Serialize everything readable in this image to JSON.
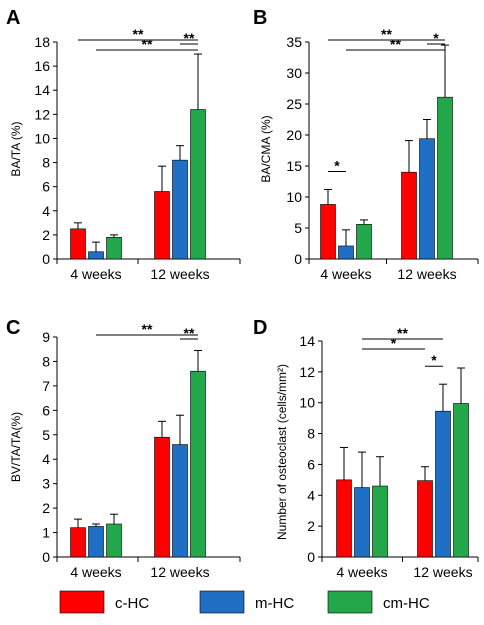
{
  "colors": {
    "c-HC": "#ff0000",
    "m-HC": "#1f6fc5",
    "cm-HC": "#22a84a"
  },
  "legend": [
    {
      "label": "c-HC",
      "color": "#ff0000"
    },
    {
      "label": "m-HC",
      "color": "#1f6fc5"
    },
    {
      "label": "cm-HC",
      "color": "#22a84a"
    }
  ],
  "chart_data": [
    {
      "panel": "A",
      "type": "bar",
      "categories": [
        "4 weeks",
        "12 weeks"
      ],
      "ylabel": "BA/TA (%)",
      "ylim": [
        0,
        18
      ],
      "yticks": [
        0,
        2,
        4,
        6,
        8,
        10,
        12,
        14,
        16,
        18
      ],
      "series": [
        {
          "name": "c-HC",
          "values": [
            2.5,
            5.6
          ],
          "errors": [
            0.5,
            2.1
          ]
        },
        {
          "name": "m-HC",
          "values": [
            0.6,
            8.2
          ],
          "errors": [
            0.8,
            1.2
          ]
        },
        {
          "name": "cm-HC",
          "values": [
            1.8,
            12.4
          ],
          "errors": [
            0.2,
            4.6
          ]
        }
      ],
      "significance": [
        {
          "label": "**",
          "from": [
            1,
            2
          ],
          "to": [
            1,
            3
          ],
          "tier": 0
        },
        {
          "label": "**",
          "from": [
            0,
            2
          ],
          "to": [
            1,
            3
          ],
          "tier": 1
        },
        {
          "label": "**",
          "from": [
            0,
            1
          ],
          "to": [
            1,
            3
          ],
          "tier": 2
        }
      ]
    },
    {
      "panel": "B",
      "type": "bar",
      "categories": [
        "4 weeks",
        "12 weeks"
      ],
      "ylabel": "BA/CMA (%)",
      "ylim": [
        0,
        35
      ],
      "yticks": [
        0,
        5,
        10,
        15,
        20,
        25,
        30,
        35
      ],
      "series": [
        {
          "name": "c-HC",
          "values": [
            8.8,
            14.0
          ],
          "errors": [
            2.4,
            5.1
          ]
        },
        {
          "name": "m-HC",
          "values": [
            2.1,
            19.4
          ],
          "errors": [
            2.6,
            3.1
          ]
        },
        {
          "name": "cm-HC",
          "values": [
            5.6,
            26.1
          ],
          "errors": [
            0.7,
            8.4
          ]
        }
      ],
      "significance": [
        {
          "label": "*",
          "from": [
            0,
            1
          ],
          "to": [
            0,
            2
          ],
          "tier": 0
        },
        {
          "label": "*",
          "from": [
            1,
            2
          ],
          "to": [
            1,
            3
          ],
          "tier": 0
        },
        {
          "label": "**",
          "from": [
            0,
            2
          ],
          "to": [
            1,
            3
          ],
          "tier": 1
        },
        {
          "label": "**",
          "from": [
            0,
            1
          ],
          "to": [
            1,
            3
          ],
          "tier": 2
        }
      ]
    },
    {
      "panel": "C",
      "type": "bar",
      "categories": [
        "4 weeks",
        "12 weeks"
      ],
      "ylabel": "BV/TA/TA(%)",
      "ylim": [
        0,
        9
      ],
      "yticks": [
        0,
        1,
        2,
        3,
        4,
        5,
        6,
        7,
        8,
        9
      ],
      "series": [
        {
          "name": "c-HC",
          "values": [
            1.2,
            4.9
          ],
          "errors": [
            0.35,
            0.65
          ]
        },
        {
          "name": "m-HC",
          "values": [
            1.25,
            4.6
          ],
          "errors": [
            0.1,
            1.2
          ]
        },
        {
          "name": "cm-HC",
          "values": [
            1.35,
            7.6
          ],
          "errors": [
            0.4,
            0.85
          ]
        }
      ],
      "significance": [
        {
          "label": "**",
          "from": [
            1,
            2
          ],
          "to": [
            1,
            3
          ],
          "tier": 0
        },
        {
          "label": "**",
          "from": [
            0,
            2
          ],
          "to": [
            1,
            3
          ],
          "tier": 1
        }
      ]
    },
    {
      "panel": "D",
      "type": "bar",
      "categories": [
        "4 weeks",
        "12 weeks"
      ],
      "ylabel": "Number of osteoclast (cells/mm²)",
      "ylim": [
        0,
        14
      ],
      "yticks": [
        0,
        2,
        4,
        6,
        8,
        10,
        12,
        14
      ],
      "series": [
        {
          "name": "c-HC",
          "values": [
            5.0,
            4.95
          ],
          "errors": [
            2.1,
            0.9
          ]
        },
        {
          "name": "m-HC",
          "values": [
            4.5,
            9.45
          ],
          "errors": [
            2.3,
            1.75
          ]
        },
        {
          "name": "cm-HC",
          "values": [
            4.6,
            9.95
          ],
          "errors": [
            1.9,
            2.3
          ]
        }
      ],
      "significance": [
        {
          "label": "*",
          "from": [
            1,
            1
          ],
          "to": [
            1,
            2
          ],
          "tier": 0
        },
        {
          "label": "*",
          "from": [
            0,
            2
          ],
          "to": [
            1,
            1
          ],
          "tier": 1
        },
        {
          "label": "**",
          "from": [
            0,
            2
          ],
          "to": [
            1,
            2
          ],
          "tier": 2
        }
      ]
    }
  ]
}
